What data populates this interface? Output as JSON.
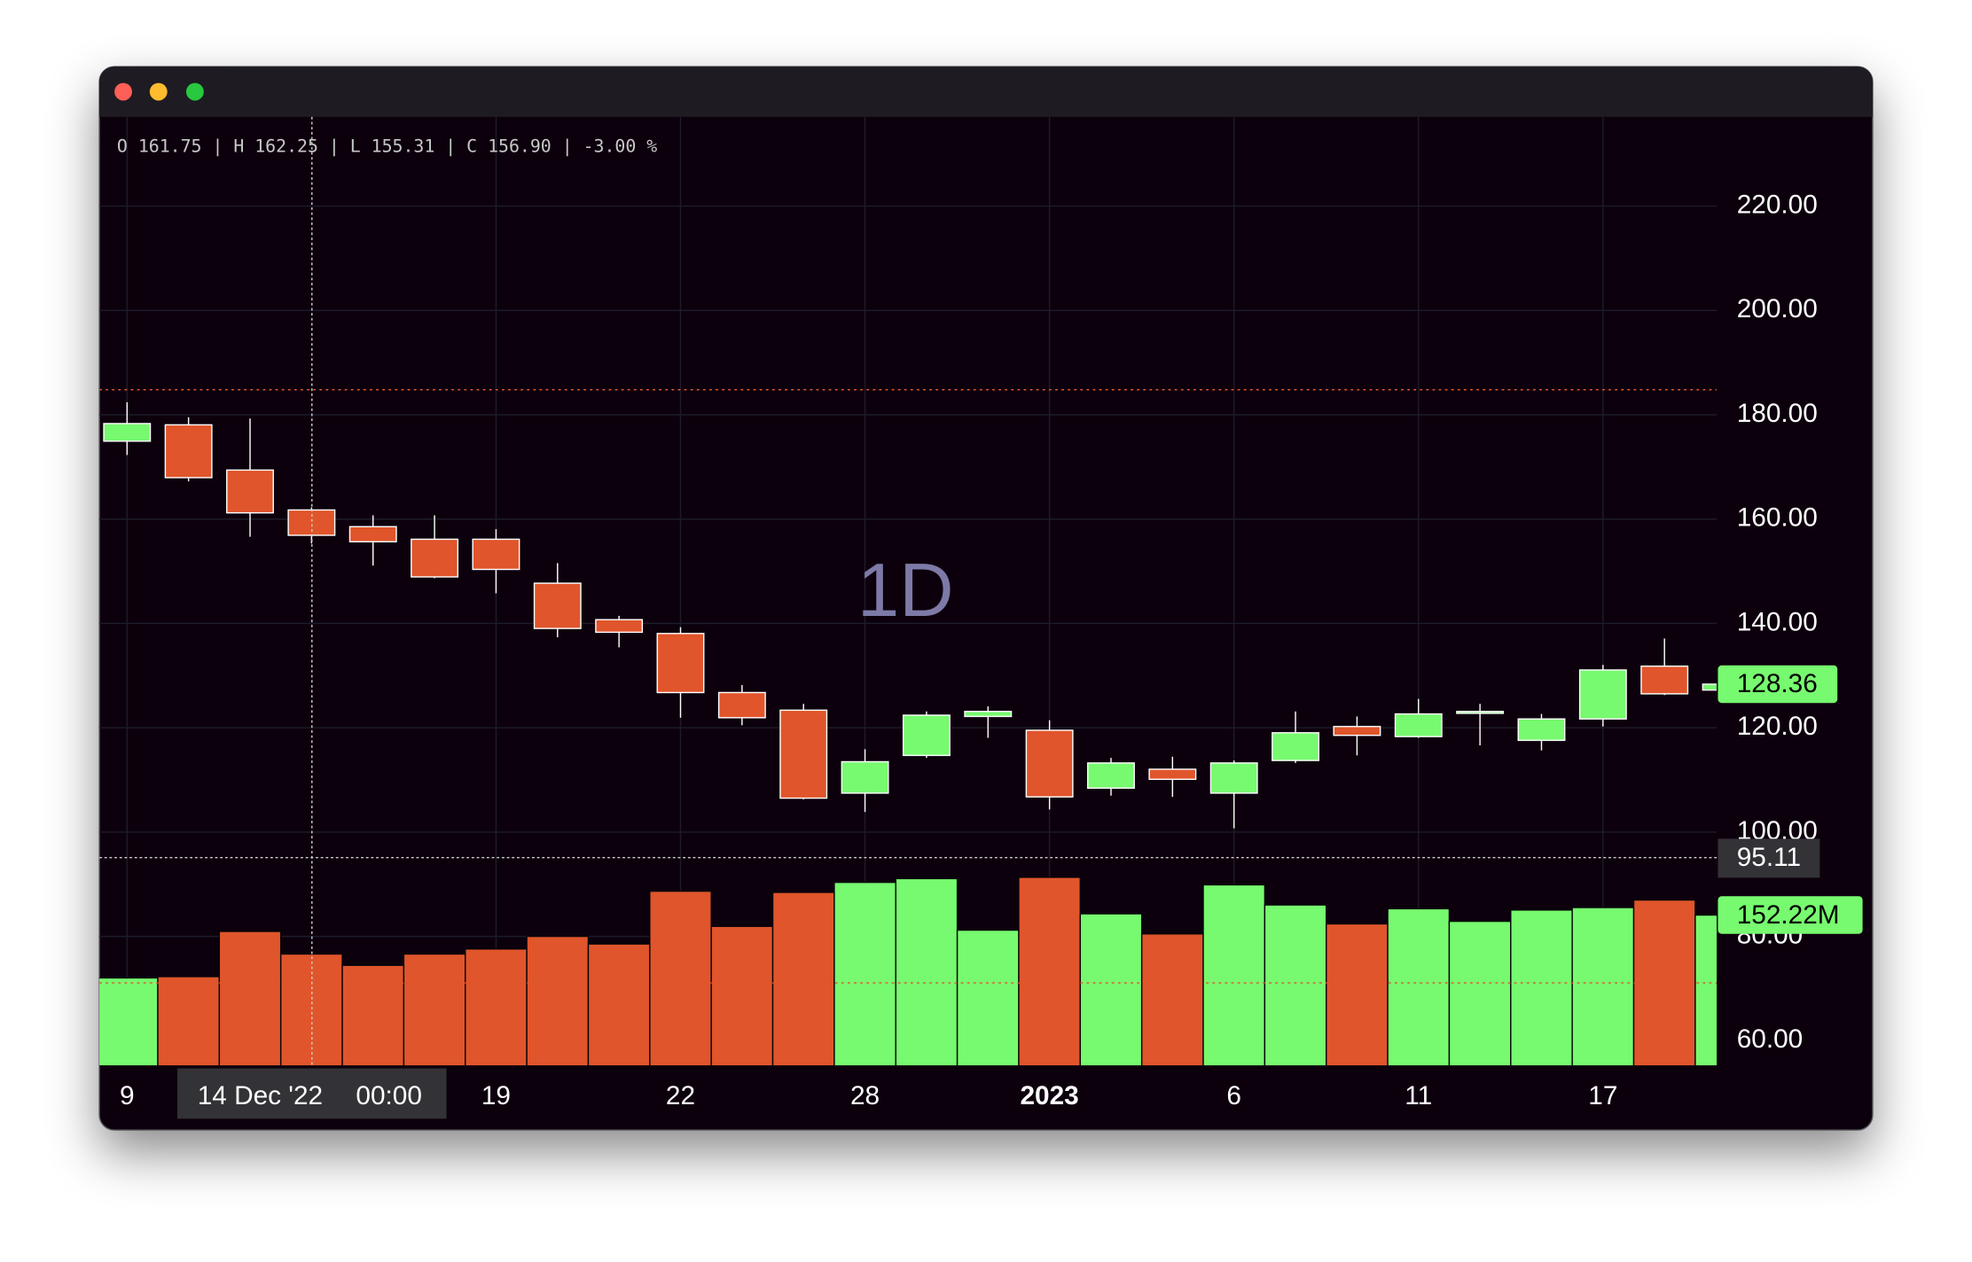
{
  "chart_data": {
    "type": "candlestick",
    "watermark": "1D",
    "ohlc_legend": "O 161.75 | H 162.25 | L 155.31 | C 156.90 | -3.00 %",
    "categories": [
      "9",
      null,
      null,
      null,
      null,
      null,
      "19",
      null,
      null,
      "22",
      null,
      null,
      "28",
      null,
      null,
      "2023",
      null,
      null,
      "6",
      null,
      null,
      "11",
      null,
      null,
      "17",
      null,
      null
    ],
    "open": [
      174.94,
      178.07,
      169.4,
      161.75,
      158.55,
      156.14,
      156.14,
      147.71,
      140.72,
      138.07,
      126.75,
      123.37,
      107.47,
      114.7,
      122.17,
      119.52,
      108.43,
      112.05,
      107.47,
      113.73,
      120.24,
      118.31,
      122.89,
      117.59,
      121.69,
      131.81,
      127.23
    ],
    "high": [
      182.41,
      179.52,
      179.28,
      162.25,
      160.72,
      160.72,
      158.07,
      151.57,
      141.45,
      139.28,
      128.19,
      124.58,
      115.9,
      123.13,
      124.1,
      121.45,
      114.22,
      114.46,
      113.73,
      123.13,
      122.17,
      125.54,
      124.58,
      122.65,
      132.05,
      137.11,
      128.6
    ],
    "low": [
      172.29,
      167.23,
      156.63,
      155.31,
      151.08,
      148.67,
      145.78,
      137.35,
      135.42,
      121.93,
      120.48,
      106.27,
      103.86,
      114.22,
      118.07,
      104.34,
      106.99,
      106.75,
      100.72,
      113.25,
      114.7,
      118.07,
      116.63,
      115.66,
      120.24,
      126.27,
      127.0
    ],
    "close": [
      178.31,
      167.95,
      161.2,
      156.9,
      155.66,
      148.92,
      150.36,
      139.04,
      138.31,
      126.75,
      121.93,
      106.51,
      113.49,
      122.41,
      123.13,
      106.75,
      113.25,
      110.12,
      113.25,
      119.04,
      118.55,
      122.65,
      123.13,
      121.69,
      131.08,
      126.51,
      128.36
    ],
    "up_color": "#77fa6f",
    "down_color": "#e0552b",
    "volume": {
      "values": [
        88.8,
        90.1,
        135.7,
        112.9,
        101.5,
        112.9,
        118.0,
        130.7,
        123.0,
        176.3,
        140.8,
        175.1,
        185.2,
        189.0,
        137.0,
        190.3,
        153.5,
        133.2,
        182.7,
        162.4,
        143.3,
        158.6,
        145.9,
        157.3,
        159.8,
        167.4,
        152.22
      ],
      "ylim": [
        0,
        200
      ],
      "last_label": {
        "value": 152.22,
        "label": "152.22M"
      }
    },
    "last_price": {
      "value": 128.36,
      "label": "128.36"
    },
    "crosshair": {
      "price": {
        "value": 95.11,
        "label": "95.11"
      },
      "date_label": "14 Dec '22",
      "time_label": "00:00"
    },
    "price_lines": [
      {
        "value": 184.8,
        "color": "#e0552b"
      },
      {
        "value": 71.1,
        "color": "#e0552b"
      }
    ],
    "ylim": [
      55.18,
      237.1
    ],
    "yticks": [
      {
        "value": 60,
        "label": "60.00"
      },
      {
        "value": 80,
        "label": "80.00"
      },
      {
        "value": 100,
        "label": "100.00"
      },
      {
        "value": 120,
        "label": "120.00"
      },
      {
        "value": 140,
        "label": "140.00"
      },
      {
        "value": 160,
        "label": "160.00"
      },
      {
        "value": 180,
        "label": "180.00"
      },
      {
        "value": 200,
        "label": "200.00"
      },
      {
        "value": 220,
        "label": "220.00"
      }
    ],
    "grid": true
  }
}
